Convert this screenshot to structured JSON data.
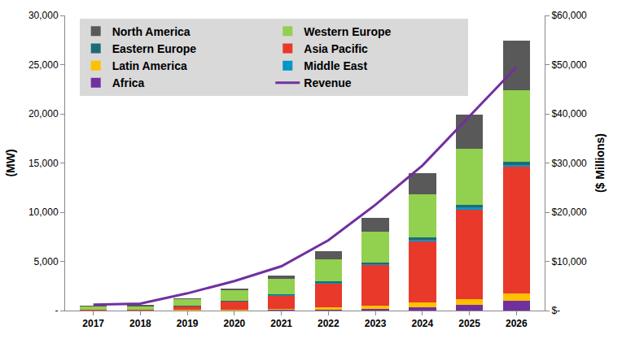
{
  "chart_data": {
    "type": "bar",
    "stacked": true,
    "grid": false,
    "legend": "top left",
    "categories": [
      "2017",
      "2018",
      "2019",
      "2020",
      "2021",
      "2022",
      "2023",
      "2024",
      "2025",
      "2026"
    ],
    "y_label": "(MW)",
    "y2_label": "($ Millions)",
    "ylim": [
      0,
      30000
    ],
    "yticks": [
      {
        "value": 0,
        "label": "-"
      },
      {
        "value": 5000,
        "label": "5,000"
      },
      {
        "value": 10000,
        "label": "10,000"
      },
      {
        "value": 15000,
        "label": "15,000"
      },
      {
        "value": 20000,
        "label": "20,000"
      },
      {
        "value": 25000,
        "label": "25,000"
      },
      {
        "value": 30000,
        "label": "30,000"
      }
    ],
    "y2lim": [
      0,
      60000
    ],
    "y2ticks": [
      {
        "value": 0,
        "label": "$-"
      },
      {
        "value": 10000,
        "label": "$10,000"
      },
      {
        "value": 20000,
        "label": "$20,000"
      },
      {
        "value": 30000,
        "label": "$30,000"
      },
      {
        "value": 40000,
        "label": "$40,000"
      },
      {
        "value": 50000,
        "label": "$50,000"
      },
      {
        "value": 60000,
        "label": "$60,000"
      }
    ],
    "series": [
      {
        "name": "North America",
        "color": "#595959",
        "values": [
          50,
          120,
          100,
          150,
          300,
          800,
          1400,
          2200,
          3450,
          5000
        ]
      },
      {
        "name": "Western Europe",
        "color": "#92d050",
        "values": [
          350,
          350,
          700,
          1100,
          1600,
          2300,
          3100,
          4400,
          5700,
          7300
        ]
      },
      {
        "name": "Eastern Europe",
        "color": "#1f6b75",
        "values": [
          10,
          10,
          30,
          50,
          80,
          120,
          150,
          200,
          250,
          300
        ]
      },
      {
        "name": "Asia Pacific",
        "color": "#e8392b",
        "values": [
          30,
          40,
          350,
          800,
          1300,
          2400,
          4100,
          6200,
          9100,
          12900
        ]
      },
      {
        "name": "Latin America",
        "color": "#ffc000",
        "values": [
          20,
          20,
          60,
          80,
          120,
          200,
          300,
          450,
          550,
          700
        ]
      },
      {
        "name": "Middle East",
        "color": "#0096c8",
        "values": [
          0,
          5,
          20,
          40,
          80,
          120,
          150,
          200,
          250,
          200
        ]
      },
      {
        "name": "Africa",
        "color": "#7030a0",
        "values": [
          0,
          5,
          20,
          30,
          60,
          100,
          200,
          350,
          600,
          1000
        ]
      },
      {
        "name": "Revenue",
        "color": "#7030a0",
        "type": "line",
        "axis": "y2",
        "values": [
          1200,
          1400,
          3500,
          6000,
          9000,
          14300,
          21500,
          29500,
          39500,
          49500
        ]
      }
    ]
  }
}
